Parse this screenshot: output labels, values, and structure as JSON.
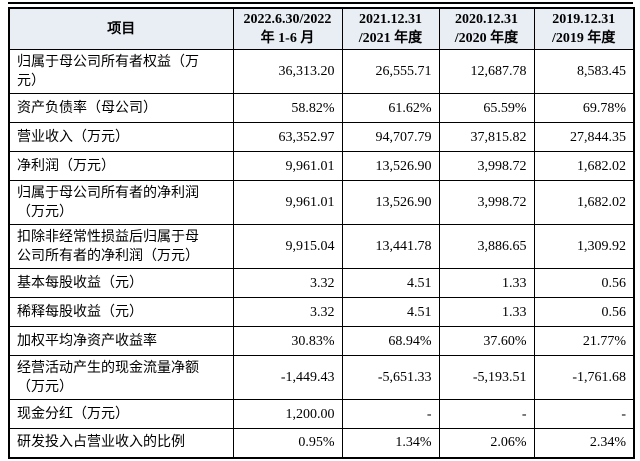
{
  "accent": {
    "header_bg": "#e9eef5",
    "border_color": "#000000",
    "text_color": "#000000"
  },
  "table": {
    "columns": [
      "项目",
      "2022.6.30/2022\n年 1-6 月",
      "2021.12.31\n/2021 年度",
      "2020.12.31\n/2020 年度",
      "2019.12.31\n/2019 年度"
    ],
    "rows": [
      {
        "label": "归属于母公司所有者权益（万\n元）",
        "values": [
          "36,313.20",
          "26,555.71",
          "12,687.78",
          "8,583.45"
        ]
      },
      {
        "label": "资产负债率（母公司）",
        "values": [
          "58.82%",
          "61.62%",
          "65.59%",
          "69.78%"
        ]
      },
      {
        "label": "营业收入（万元）",
        "values": [
          "63,352.97",
          "94,707.79",
          "37,815.82",
          "27,844.35"
        ]
      },
      {
        "label": "净利润（万元）",
        "values": [
          "9,961.01",
          "13,526.90",
          "3,998.72",
          "1,682.02"
        ]
      },
      {
        "label": "归属于母公司所有者的净利润\n（万元）",
        "values": [
          "9,961.01",
          "13,526.90",
          "3,998.72",
          "1,682.02"
        ]
      },
      {
        "label": "扣除非经常性损益后归属于母\n公司所有者的净利润（万元）",
        "values": [
          "9,915.04",
          "13,441.78",
          "3,886.65",
          "1,309.92"
        ]
      },
      {
        "label": "基本每股收益（元）",
        "values": [
          "3.32",
          "4.51",
          "1.33",
          "0.56"
        ]
      },
      {
        "label": "稀释每股收益（元）",
        "values": [
          "3.32",
          "4.51",
          "1.33",
          "0.56"
        ]
      },
      {
        "label": "加权平均净资产收益率",
        "values": [
          "30.83%",
          "68.94%",
          "37.60%",
          "21.77%"
        ]
      },
      {
        "label": "经营活动产生的现金流量净额\n（万元）",
        "values": [
          "-1,449.43",
          "-5,651.33",
          "-5,193.51",
          "-1,761.68"
        ]
      },
      {
        "label": "现金分红（万元）",
        "values": [
          "1,200.00",
          "-",
          "-",
          "-"
        ]
      },
      {
        "label": "研发投入占营业收入的比例",
        "values": [
          "0.95%",
          "1.34%",
          "2.06%",
          "2.34%"
        ]
      }
    ]
  }
}
